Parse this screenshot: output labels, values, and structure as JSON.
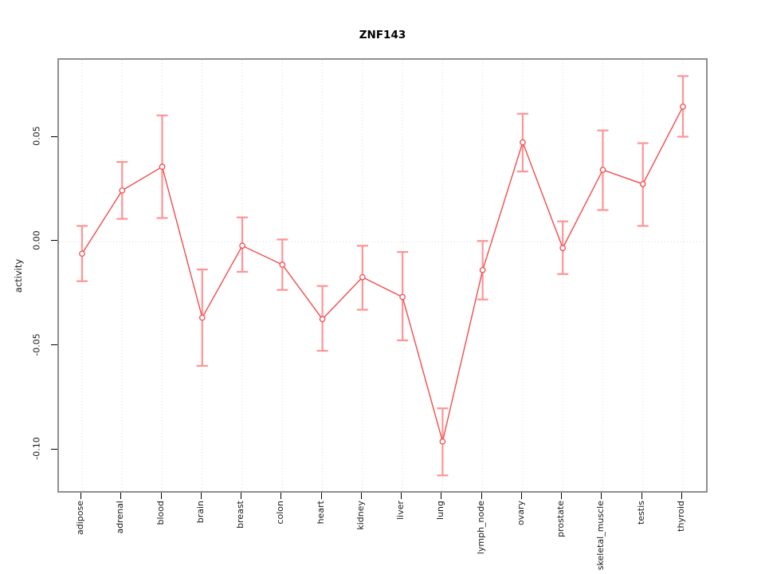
{
  "title": "ZNF143",
  "chart_data": {
    "type": "line",
    "title": "ZNF143",
    "xlabel": "",
    "ylabel": "activity",
    "categories": [
      "adipose",
      "adrenal",
      "blood",
      "brain",
      "breast",
      "colon",
      "heart",
      "kidney",
      "liver",
      "lung",
      "lymph_node",
      "ovary",
      "prostate",
      "skeletal_muscle",
      "testis",
      "thyroid"
    ],
    "series": [
      {
        "name": "activity",
        "values": [
          -0.0057,
          0.0246,
          0.036,
          -0.0364,
          -0.0019,
          -0.011,
          -0.0371,
          -0.017,
          -0.0265,
          -0.0958,
          -0.0136,
          0.0477,
          -0.003,
          0.0345,
          0.0277,
          0.0648
        ],
        "lower": [
          -0.0189,
          0.011,
          0.0114,
          -0.0595,
          -0.0144,
          -0.0231,
          -0.0523,
          -0.0326,
          -0.0473,
          -0.1121,
          -0.0277,
          0.0337,
          -0.0155,
          0.0152,
          0.0076,
          0.0504
        ],
        "upper": [
          0.0076,
          0.0383,
          0.0606,
          -0.0133,
          0.0117,
          0.0011,
          -0.0212,
          -0.0019,
          -0.0049,
          -0.0799,
          0.0004,
          0.0614,
          0.0098,
          0.0534,
          0.0473,
          0.0795
        ]
      }
    ],
    "ylim": [
      -0.1196,
      0.0873
    ],
    "yticks": [
      0.05,
      0.0,
      -0.05,
      -0.1
    ],
    "ytick_labels": [
      "0.05",
      "0.00",
      "-0.05",
      "-0.10"
    ],
    "grid": "vertical dotted line at each category; horizontal dotted line at y=0",
    "zero_line": true,
    "legend": "none",
    "point_style": "open-circle",
    "error_bars": true,
    "colors": {
      "line": "#f34c4c",
      "point": "#f34c4c",
      "error_bar": "#ff9494",
      "grid": "#dcdcdc",
      "box": "#8f8f8f",
      "tick": "#000000",
      "title": "#000000",
      "background": "#ffffff"
    }
  }
}
